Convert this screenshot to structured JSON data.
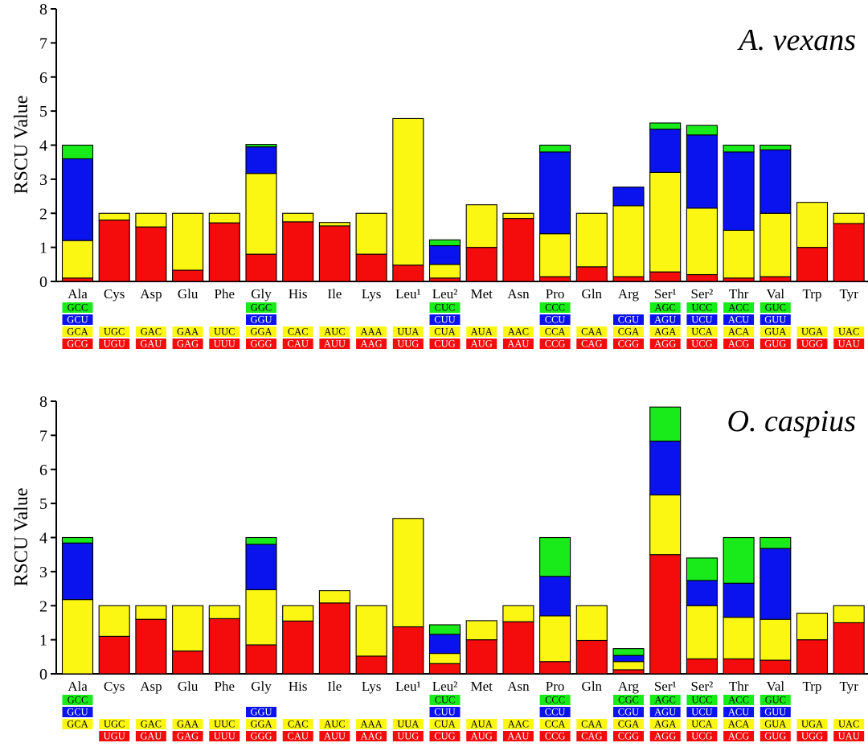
{
  "colors": {
    "green": "#19ea19",
    "blue": "#0a12ee",
    "yellow": "#fbf712",
    "red": "#f40b0b",
    "outline": "#000000"
  },
  "legend_order_note": "stack bottom-to-top: red, yellow, blue, green",
  "chart_data": [
    {
      "type": "bar",
      "stacked": true,
      "title": "A. vexans",
      "xlabel": "",
      "ylabel": "RSCU Value",
      "ylim": [
        0,
        8
      ],
      "yticks": [
        "0",
        "1",
        "2",
        "3",
        "4",
        "5",
        "6",
        "7",
        "8"
      ],
      "categories": [
        "Ala",
        "Cys",
        "Asp",
        "Glu",
        "Phe",
        "Gly",
        "His",
        "Ile",
        "Lys",
        "Leu¹",
        "Leu²",
        "Met",
        "Asn",
        "Pro",
        "Gln",
        "Arg",
        "Ser¹",
        "Ser²",
        "Thr",
        "Val",
        "Trp",
        "Tyr"
      ],
      "series": [
        {
          "name": "red",
          "color": "#f40b0b",
          "values": [
            0.1,
            1.8,
            1.6,
            0.33,
            1.72,
            0.8,
            1.75,
            1.63,
            0.8,
            0.48,
            0.1,
            1.0,
            1.85,
            0.14,
            0.43,
            0.14,
            0.28,
            0.2,
            0.1,
            0.14,
            1.0,
            1.7
          ]
        },
        {
          "name": "yellow",
          "color": "#fbf712",
          "values": [
            1.1,
            0.2,
            0.4,
            1.67,
            0.28,
            2.37,
            0.25,
            0.1,
            1.2,
            4.3,
            0.4,
            1.25,
            0.15,
            1.26,
            1.57,
            2.08,
            2.92,
            1.95,
            1.4,
            1.86,
            1.32,
            0.3
          ]
        },
        {
          "name": "blue",
          "color": "#0a12ee",
          "values": [
            2.4,
            0,
            0,
            0,
            0,
            0.78,
            0,
            0,
            0,
            0,
            0.55,
            0,
            0,
            2.4,
            0,
            0.55,
            1.27,
            2.15,
            2.3,
            1.86,
            0,
            0
          ]
        },
        {
          "name": "green",
          "color": "#19ea19",
          "values": [
            0.4,
            0,
            0,
            0,
            0,
            0.07,
            0,
            0,
            0,
            0,
            0.17,
            0,
            0,
            0.2,
            0,
            0,
            0.18,
            0.28,
            0.2,
            0.14,
            0,
            0
          ]
        }
      ],
      "codons": [
        {
          "green": "GCC",
          "blue": "GCU",
          "yellow": "GCA",
          "red": "GCG"
        },
        {
          "green": "",
          "blue": "",
          "yellow": "UGC",
          "red": "UGU"
        },
        {
          "green": "",
          "blue": "",
          "yellow": "GAC",
          "red": "GAU"
        },
        {
          "green": "",
          "blue": "",
          "yellow": "GAA",
          "red": "GAG"
        },
        {
          "green": "",
          "blue": "",
          "yellow": "UUC",
          "red": "UUU"
        },
        {
          "green": "GGC",
          "blue": "GGU",
          "yellow": "GGA",
          "red": "GGG"
        },
        {
          "green": "",
          "blue": "",
          "yellow": "CAC",
          "red": "CAU"
        },
        {
          "green": "",
          "blue": "",
          "yellow": "AUC",
          "red": "AUU"
        },
        {
          "green": "",
          "blue": "",
          "yellow": "AAA",
          "red": "AAG"
        },
        {
          "green": "",
          "blue": "",
          "yellow": "UUA",
          "red": "UUG"
        },
        {
          "green": "CUC",
          "blue": "CUU",
          "yellow": "CUA",
          "red": "CUG"
        },
        {
          "green": "",
          "blue": "",
          "yellow": "AUA",
          "red": "AUG"
        },
        {
          "green": "",
          "blue": "",
          "yellow": "AAC",
          "red": "AAU"
        },
        {
          "green": "CCC",
          "blue": "CCU",
          "yellow": "CCA",
          "red": "CCG"
        },
        {
          "green": "",
          "blue": "",
          "yellow": "CAA",
          "red": "CAG"
        },
        {
          "green": "",
          "blue": "CGU",
          "yellow": "CGA",
          "red": "CGG"
        },
        {
          "green": "AGC",
          "blue": "AGU",
          "yellow": "AGA",
          "red": "AGG"
        },
        {
          "green": "UCC",
          "blue": "UCU",
          "yellow": "UCA",
          "red": "UCG"
        },
        {
          "green": "ACC",
          "blue": "ACU",
          "yellow": "ACA",
          "red": "ACG"
        },
        {
          "green": "GUC",
          "blue": "GUU",
          "yellow": "GUA",
          "red": "GUG"
        },
        {
          "green": "",
          "blue": "",
          "yellow": "UGA",
          "red": "UGG"
        },
        {
          "green": "",
          "blue": "",
          "yellow": "UAC",
          "red": "UAU"
        }
      ]
    },
    {
      "type": "bar",
      "stacked": true,
      "title": "O. caspius",
      "xlabel": "",
      "ylabel": "RSCU Value",
      "ylim": [
        0,
        8
      ],
      "yticks": [
        "0",
        "1",
        "2",
        "3",
        "4",
        "5",
        "6",
        "7",
        "8"
      ],
      "categories": [
        "Ala",
        "Cys",
        "Asp",
        "Glu",
        "Phe",
        "Gly",
        "His",
        "Ile",
        "Lys",
        "Leu¹",
        "Leu²",
        "Met",
        "Asn",
        "Pro",
        "Gln",
        "Arg",
        "Ser¹",
        "Ser²",
        "Thr",
        "Val",
        "Trp",
        "Tyr"
      ],
      "series": [
        {
          "name": "red",
          "color": "#f40b0b",
          "values": [
            0,
            1.1,
            1.6,
            0.67,
            1.62,
            0.85,
            1.55,
            2.08,
            0.52,
            1.38,
            0.3,
            1.0,
            1.53,
            0.36,
            0.98,
            0.12,
            3.5,
            0.44,
            0.44,
            0.4,
            1.0,
            1.5
          ]
        },
        {
          "name": "yellow",
          "color": "#fbf712",
          "values": [
            2.18,
            0.9,
            0.4,
            1.33,
            0.38,
            1.62,
            0.45,
            0.36,
            1.48,
            3.18,
            0.3,
            0.56,
            0.47,
            1.34,
            1.02,
            0.24,
            1.75,
            1.56,
            1.22,
            1.2,
            0.78,
            0.5
          ]
        },
        {
          "name": "blue",
          "color": "#0a12ee",
          "values": [
            1.66,
            0,
            0,
            0,
            0,
            1.33,
            0,
            0,
            0,
            0,
            0.56,
            0,
            0,
            1.16,
            0,
            0.18,
            1.58,
            0.74,
            1.0,
            2.08,
            0,
            0
          ]
        },
        {
          "name": "green",
          "color": "#19ea19",
          "values": [
            0.16,
            0,
            0,
            0,
            0,
            0.2,
            0,
            0,
            0,
            0,
            0.28,
            0,
            0,
            1.14,
            0,
            0.2,
            1.0,
            0.66,
            1.34,
            0.32,
            0,
            0
          ]
        }
      ],
      "codons": [
        {
          "green": "GCC",
          "blue": "GCU",
          "yellow": "GCA",
          "red": ""
        },
        {
          "green": "",
          "blue": "",
          "yellow": "UGC",
          "red": "UGU"
        },
        {
          "green": "",
          "blue": "",
          "yellow": "GAC",
          "red": "GAU"
        },
        {
          "green": "",
          "blue": "",
          "yellow": "GAA",
          "red": "GAG"
        },
        {
          "green": "",
          "blue": "",
          "yellow": "UUC",
          "red": "UUU"
        },
        {
          "green": "",
          "blue": "GGU",
          "yellow": "GGA",
          "red": "GGG"
        },
        {
          "green": "",
          "blue": "",
          "yellow": "CAC",
          "red": "CAU"
        },
        {
          "green": "",
          "blue": "",
          "yellow": "AUC",
          "red": "AUU"
        },
        {
          "green": "",
          "blue": "",
          "yellow": "AAA",
          "red": "AAG"
        },
        {
          "green": "",
          "blue": "",
          "yellow": "UUA",
          "red": "UUG"
        },
        {
          "green": "CUC",
          "blue": "CUU",
          "yellow": "CUA",
          "red": "CUG"
        },
        {
          "green": "",
          "blue": "",
          "yellow": "AUA",
          "red": "AUG"
        },
        {
          "green": "",
          "blue": "",
          "yellow": "AAC",
          "red": "AAU"
        },
        {
          "green": "CCC",
          "blue": "CCU",
          "yellow": "CCA",
          "red": "CCG"
        },
        {
          "green": "",
          "blue": "",
          "yellow": "CAA",
          "red": "CAG"
        },
        {
          "green": "CGC",
          "blue": "CGU",
          "yellow": "CGA",
          "red": "CGG"
        },
        {
          "green": "AGC",
          "blue": "AGU",
          "yellow": "AGA",
          "red": "AGG"
        },
        {
          "green": "UCC",
          "blue": "UCU",
          "yellow": "UCA",
          "red": "UCG"
        },
        {
          "green": "ACC",
          "blue": "ACU",
          "yellow": "ACA",
          "red": "ACG"
        },
        {
          "green": "GUC",
          "blue": "GUU",
          "yellow": "GUA",
          "red": "GUG"
        },
        {
          "green": "",
          "blue": "",
          "yellow": "UGA",
          "red": "UGG"
        },
        {
          "green": "",
          "blue": "",
          "yellow": "UAC",
          "red": "UAU"
        }
      ]
    }
  ]
}
